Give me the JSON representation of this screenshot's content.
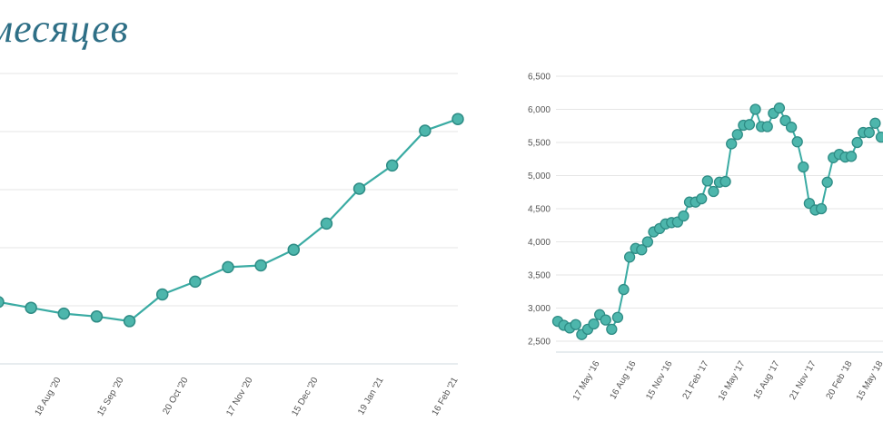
{
  "title": "месяцев",
  "colors": {
    "series": "#3aaba3",
    "marker_fill": "#4db6ac",
    "marker_stroke": "#2e8c85",
    "title": "#2e6f86"
  },
  "chart_data": [
    {
      "type": "line",
      "title": "",
      "x_ticks": [
        "18 Aug '20",
        "15 Sep '20",
        "20 Oct '20",
        "17 Nov '20",
        "15 Dec '20",
        "19 Jan '21",
        "16 Feb '21"
      ],
      "series": [
        {
          "values": [
            3.55,
            3.45,
            3.35,
            3.3,
            3.22,
            3.68,
            3.9,
            4.15,
            4.18,
            4.45,
            4.9,
            5.5,
            5.9,
            6.5,
            6.7
          ]
        }
      ],
      "grid": true,
      "legend": "none"
    },
    {
      "type": "line",
      "title": "",
      "y_ticks": [
        "2,500",
        "3,000",
        "3,500",
        "4,000",
        "4,500",
        "5,000",
        "5,500",
        "6,000",
        "6,500"
      ],
      "ylim": [
        2500,
        6500
      ],
      "x_ticks": [
        "17 May '16",
        "16 Aug '16",
        "15 Nov '16",
        "21 Feb '17",
        "16 May '17",
        "15 Aug '17",
        "21 Nov '17",
        "20 Feb '18",
        "15 May '18"
      ],
      "series": [
        {
          "values": [
            2800,
            2740,
            2700,
            2750,
            2600,
            2680,
            2760,
            2900,
            2820,
            2680,
            2860,
            3280,
            3770,
            3900,
            3880,
            4000,
            4150,
            4200,
            4270,
            4290,
            4300,
            4390,
            4600,
            4600,
            4650,
            4920,
            4760,
            4900,
            4910,
            5480,
            5620,
            5760,
            5770,
            6000,
            5740,
            5740,
            5940,
            6020,
            5830,
            5730,
            5510,
            5130,
            4580,
            4480,
            4500,
            4900,
            5270,
            5320,
            5280,
            5290,
            5500,
            5650,
            5650,
            5790,
            5580
          ]
        }
      ],
      "grid": true,
      "legend": "none"
    }
  ]
}
